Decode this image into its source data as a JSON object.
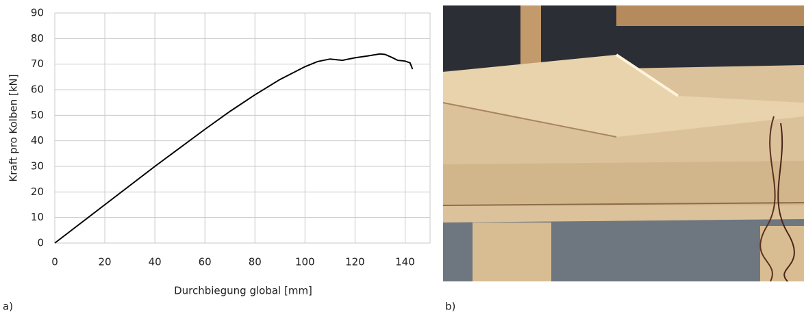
{
  "chart_data": {
    "type": "line",
    "y_label": "Kraft pro Kolben [kN]",
    "x_label": "Durchbiegung global [mm]",
    "panel_a": "a)",
    "panel_b": "b)",
    "x": [
      0,
      10,
      20,
      40,
      60,
      70,
      80,
      90,
      100,
      105,
      110,
      115,
      120,
      125,
      130,
      132,
      135,
      137,
      140,
      142,
      143
    ],
    "series": [
      {
        "color": "#000000",
        "values": [
          0,
          7.5,
          15,
          30,
          44.5,
          51.5,
          58,
          64,
          69,
          71,
          72,
          71.5,
          72.5,
          73.2,
          74,
          73.8,
          72.5,
          71.5,
          71.2,
          70.5,
          68
        ]
      }
    ],
    "xlim": [
      0,
      150
    ],
    "xticks": [
      0,
      20,
      40,
      60,
      80,
      100,
      120,
      140
    ],
    "ylim": [
      0,
      90
    ],
    "yticks": [
      0,
      10,
      20,
      30,
      40,
      50,
      60,
      70,
      80,
      90
    ],
    "grid": true
  }
}
